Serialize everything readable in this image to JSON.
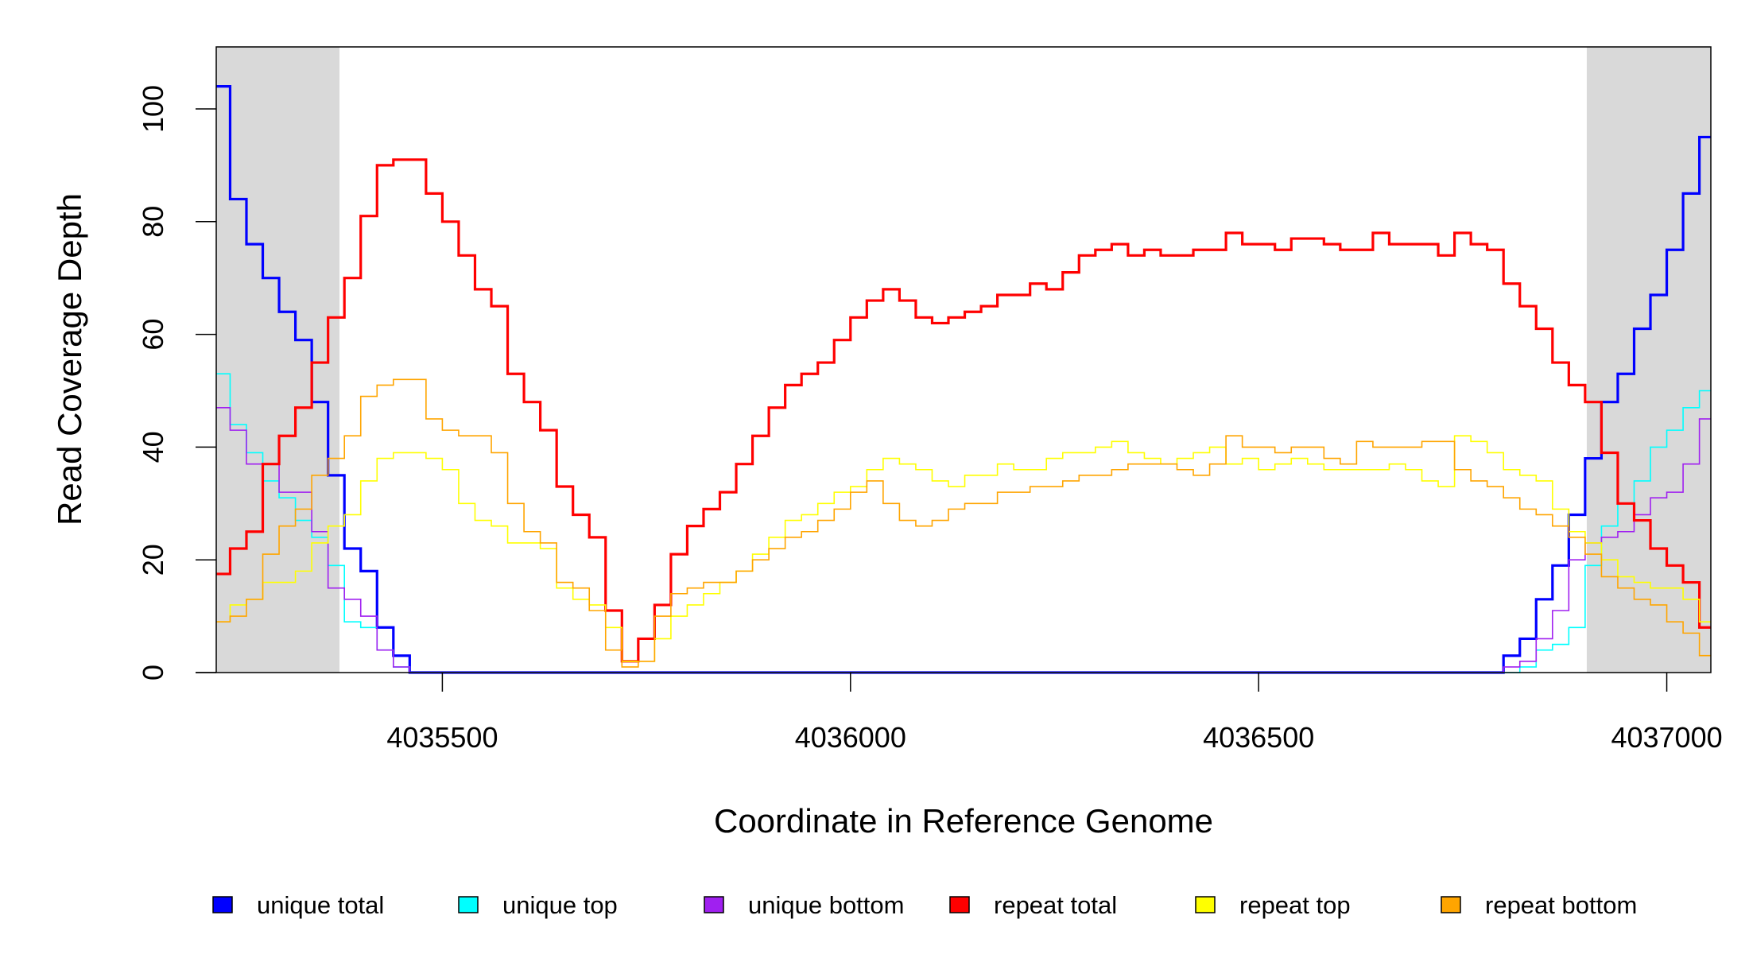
{
  "chart_data": {
    "type": "line",
    "title": "",
    "xlabel": "Coordinate in Reference Genome",
    "ylabel": "Read Coverage Depth",
    "xlim": [
      4035223,
      4037054
    ],
    "ylim": [
      0,
      111
    ],
    "xticks": [
      4035500,
      4036000,
      4036500,
      4037000
    ],
    "xtick_labels": [
      "4035500",
      "4036000",
      "4036500",
      "4037000"
    ],
    "yticks": [
      0,
      20,
      40,
      60,
      80,
      100
    ],
    "ytick_labels": [
      "0",
      "20",
      "40",
      "60",
      "80",
      "100"
    ],
    "grid": false,
    "shaded_regions": [
      [
        4035223,
        4035374
      ],
      [
        4036902,
        4037054
      ]
    ],
    "shade_color": "#d9d9d9",
    "legend_position": "bottom",
    "x_start": 4035230,
    "x_step": 20,
    "series": [
      {
        "name": "unique total",
        "color": "#0000ff",
        "width": 3.2,
        "values": [
          104,
          84,
          76,
          70,
          64,
          59,
          48,
          35,
          22,
          18,
          8,
          3,
          0,
          0,
          0,
          0,
          0,
          0,
          0,
          0,
          0,
          0,
          0,
          0,
          0,
          0,
          0,
          0,
          0,
          0,
          0,
          0,
          0,
          0,
          0,
          0,
          0,
          0,
          0,
          0,
          0,
          0,
          0,
          0,
          0,
          0,
          0,
          0,
          0,
          0,
          0,
          0,
          0,
          0,
          0,
          0,
          0,
          0,
          0,
          0,
          0,
          0,
          0,
          0,
          0,
          0,
          0,
          0,
          0,
          0,
          0,
          0,
          0,
          0,
          0,
          0,
          0,
          0,
          0,
          3,
          6,
          13,
          19,
          28,
          38,
          48,
          53,
          61,
          67,
          75,
          85,
          95
        ]
      },
      {
        "name": "unique top",
        "color": "#00ffff",
        "width": 1.6,
        "values": [
          53,
          44,
          39,
          34,
          31,
          27,
          24,
          19,
          9,
          8,
          4,
          1,
          0,
          0,
          0,
          0,
          0,
          0,
          0,
          0,
          0,
          0,
          0,
          0,
          0,
          0,
          0,
          0,
          0,
          0,
          0,
          0,
          0,
          0,
          0,
          0,
          0,
          0,
          0,
          0,
          0,
          0,
          0,
          0,
          0,
          0,
          0,
          0,
          0,
          0,
          0,
          0,
          0,
          0,
          0,
          0,
          0,
          0,
          0,
          0,
          0,
          0,
          0,
          0,
          0,
          0,
          0,
          0,
          0,
          0,
          0,
          0,
          0,
          0,
          0,
          0,
          0,
          0,
          0,
          0,
          1,
          4,
          5,
          8,
          19,
          26,
          30,
          34,
          40,
          43,
          47,
          50
        ]
      },
      {
        "name": "unique bottom",
        "color": "#a020f0",
        "width": 1.6,
        "values": [
          47,
          43,
          37,
          37,
          32,
          32,
          25,
          15,
          13,
          10,
          4,
          1,
          0,
          0,
          0,
          0,
          0,
          0,
          0,
          0,
          0,
          0,
          0,
          0,
          0,
          0,
          0,
          0,
          0,
          0,
          0,
          0,
          0,
          0,
          0,
          0,
          0,
          0,
          0,
          0,
          0,
          0,
          0,
          0,
          0,
          0,
          0,
          0,
          0,
          0,
          0,
          0,
          0,
          0,
          0,
          0,
          0,
          0,
          0,
          0,
          0,
          0,
          0,
          0,
          0,
          0,
          0,
          0,
          0,
          0,
          0,
          0,
          0,
          0,
          0,
          0,
          0,
          0,
          0,
          1,
          2,
          6,
          11,
          20,
          23,
          24,
          25,
          28,
          31,
          32,
          37,
          45
        ]
      },
      {
        "name": "repeat total",
        "color": "#ff0000",
        "width": 3.2,
        "values": [
          17.5,
          22,
          25,
          37,
          42,
          47,
          55,
          63,
          70,
          81,
          90,
          91,
          91,
          85,
          80,
          74,
          68,
          65,
          53,
          48,
          43,
          33,
          28,
          24,
          11,
          2,
          6,
          12,
          21,
          26,
          29,
          32,
          37,
          42,
          47,
          51,
          53,
          55,
          59,
          63,
          66,
          68,
          66,
          63,
          62,
          63,
          64,
          65,
          67,
          67,
          69,
          68,
          71,
          74,
          75,
          76,
          74,
          75,
          74,
          74,
          75,
          75,
          78,
          76,
          76,
          75,
          77,
          77,
          76,
          75,
          75,
          78,
          76,
          76,
          76,
          74,
          78,
          76,
          75,
          69,
          65,
          61,
          55,
          51,
          48,
          39,
          30,
          27,
          22,
          19,
          16,
          8
        ]
      },
      {
        "name": "repeat top",
        "color": "#ffff00",
        "width": 1.6,
        "values": [
          9,
          12,
          13,
          16,
          16,
          18,
          23,
          26,
          28,
          34,
          38,
          39,
          39,
          38,
          36,
          30,
          27,
          26,
          23,
          23,
          22,
          15,
          13,
          12,
          8,
          2,
          2,
          6,
          10,
          12,
          14,
          16,
          18,
          21,
          24,
          27,
          28,
          30,
          32,
          33,
          36,
          38,
          37,
          36,
          34,
          33,
          35,
          35,
          37,
          36,
          36,
          38,
          39,
          39,
          40,
          41,
          39,
          38,
          37,
          38,
          39,
          40,
          37,
          38,
          36,
          37,
          38,
          37,
          36,
          36,
          36,
          36,
          37,
          36,
          34,
          33,
          42,
          41,
          39,
          36,
          35,
          34,
          29,
          25,
          23,
          20,
          17,
          16,
          15,
          15,
          13,
          9
        ]
      },
      {
        "name": "repeat bottom",
        "color": "#ffa500",
        "width": 1.6,
        "values": [
          9,
          10,
          13,
          21,
          26,
          29,
          35,
          38,
          42,
          49,
          51,
          52,
          52,
          45,
          43,
          42,
          42,
          39,
          30,
          25,
          23,
          16,
          15,
          11,
          4,
          1,
          2,
          10,
          14,
          15,
          16,
          16,
          18,
          20,
          22,
          24,
          25,
          27,
          29,
          32,
          34,
          30,
          27,
          26,
          27,
          29,
          30,
          30,
          32,
          32,
          33,
          33,
          34,
          35,
          35,
          36,
          37,
          37,
          37,
          36,
          35,
          37,
          42,
          40,
          40,
          39,
          40,
          40,
          38,
          37,
          41,
          40,
          40,
          40,
          41,
          41,
          36,
          34,
          33,
          31,
          29,
          28,
          26,
          24,
          21,
          17,
          15,
          13,
          12,
          9,
          7,
          3
        ]
      }
    ]
  }
}
